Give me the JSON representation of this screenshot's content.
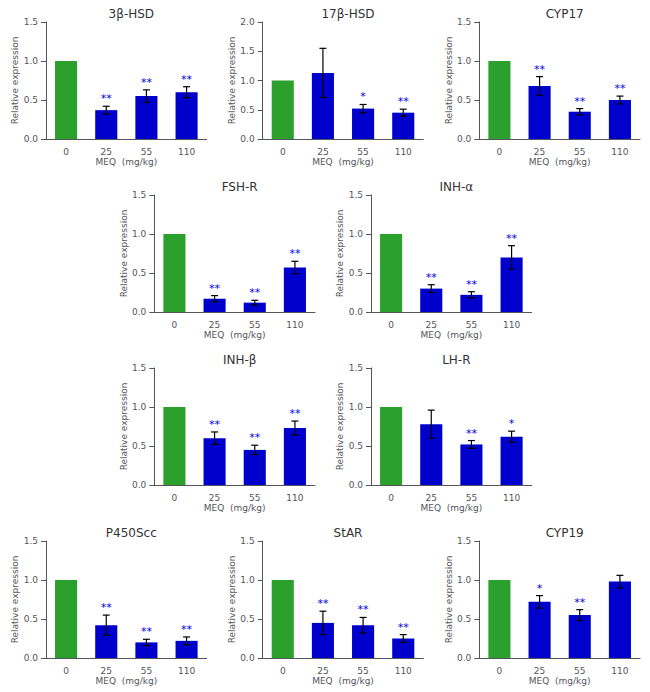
{
  "chart_data": [
    {
      "type": "bar",
      "title": "3β-HSD",
      "xlabel": "MEQ  (mg/kg)",
      "ylabel": "Relative expression",
      "categories": [
        "0",
        "25",
        "55",
        "110"
      ],
      "values": [
        1.0,
        0.37,
        0.55,
        0.6
      ],
      "errors": [
        0.0,
        0.05,
        0.08,
        0.07
      ],
      "colors": [
        "#2ca02c",
        "#0000cc",
        "#0000cc",
        "#0000cc"
      ],
      "ylim": [
        0,
        1.5
      ],
      "yticks": [
        {
          "value": 0,
          "label": "0.0"
        },
        0.5,
        {
          "value": 1,
          "label": "1.0"
        },
        1.5
      ],
      "grid": false,
      "annotations": [
        {
          "x": "25",
          "text": "**",
          "color": "#0000ee"
        },
        {
          "x": "55",
          "text": "**",
          "color": "#0000ee"
        },
        {
          "x": "110",
          "text": "**",
          "color": "#0000ee"
        }
      ]
    },
    {
      "type": "bar",
      "title": "17β-HSD",
      "xlabel": "MEQ  (mg/kg)",
      "ylabel": "Relative expression",
      "categories": [
        "0",
        "25",
        "55",
        "110"
      ],
      "values": [
        1.0,
        1.13,
        0.52,
        0.45
      ],
      "errors": [
        0.0,
        0.42,
        0.07,
        0.06
      ],
      "colors": [
        "#2ca02c",
        "#0000cc",
        "#0000cc",
        "#0000cc"
      ],
      "ylim": [
        0,
        2.0
      ],
      "yticks": [
        {
          "value": 0,
          "label": "0.0"
        },
        0.5,
        {
          "value": 1,
          "label": "1.0"
        },
        1.5,
        {
          "value": 2,
          "label": "2.0"
        }
      ],
      "grid": false,
      "annotations": [
        {
          "x": "55",
          "text": "*",
          "color": "#0000ee"
        },
        {
          "x": "110",
          "text": "**",
          "color": "#0000ee"
        }
      ]
    },
    {
      "type": "bar",
      "title": "CYP17",
      "xlabel": "MEQ  (mg/kg)",
      "ylabel": "Relative expression",
      "categories": [
        "0",
        "25",
        "55",
        "110"
      ],
      "values": [
        1.0,
        0.68,
        0.35,
        0.5
      ],
      "errors": [
        0.0,
        0.12,
        0.04,
        0.05
      ],
      "colors": [
        "#2ca02c",
        "#0000cc",
        "#0000cc",
        "#0000cc"
      ],
      "ylim": [
        0,
        1.5
      ],
      "yticks": [
        {
          "value": 0,
          "label": "0.0"
        },
        0.5,
        {
          "value": 1,
          "label": "1.0"
        },
        1.5
      ],
      "grid": false,
      "annotations": [
        {
          "x": "25",
          "text": "**",
          "color": "#0000ee"
        },
        {
          "x": "55",
          "text": "**",
          "color": "#0000ee"
        },
        {
          "x": "110",
          "text": "**",
          "color": "#0000ee"
        }
      ]
    },
    {
      "type": "bar",
      "title": "FSH-R",
      "xlabel": "MEQ  (mg/kg)",
      "ylabel": "Relative expression",
      "categories": [
        "0",
        "25",
        "55",
        "110"
      ],
      "values": [
        1.0,
        0.17,
        0.12,
        0.57
      ],
      "errors": [
        0.0,
        0.04,
        0.03,
        0.08
      ],
      "colors": [
        "#2ca02c",
        "#0000cc",
        "#0000cc",
        "#0000cc"
      ],
      "ylim": [
        0,
        1.5
      ],
      "yticks": [
        {
          "value": 0,
          "label": "0.0"
        },
        0.5,
        {
          "value": 1,
          "label": "1.0"
        },
        1.5
      ],
      "grid": false,
      "annotations": [
        {
          "x": "25",
          "text": "**",
          "color": "#0000ee"
        },
        {
          "x": "55",
          "text": "**",
          "color": "#0000ee"
        },
        {
          "x": "110",
          "text": "**",
          "color": "#0000ee"
        }
      ]
    },
    {
      "type": "bar",
      "title": "INH-α",
      "xlabel": "MEQ  (mg/kg)",
      "ylabel": "Relative expression",
      "categories": [
        "0",
        "25",
        "55",
        "110"
      ],
      "values": [
        1.0,
        0.3,
        0.22,
        0.7
      ],
      "errors": [
        0.0,
        0.05,
        0.04,
        0.15
      ],
      "colors": [
        "#2ca02c",
        "#0000cc",
        "#0000cc",
        "#0000cc"
      ],
      "ylim": [
        0,
        1.5
      ],
      "yticks": [
        {
          "value": 0,
          "label": "0.0"
        },
        0.5,
        {
          "value": 1,
          "label": "1.0"
        },
        1.5
      ],
      "grid": false,
      "annotations": [
        {
          "x": "25",
          "text": "**",
          "color": "#0000ee"
        },
        {
          "x": "55",
          "text": "**",
          "color": "#0000ee"
        },
        {
          "x": "110",
          "text": "**",
          "color": "#0000ee"
        }
      ]
    },
    {
      "type": "bar",
      "title": "INH-β",
      "xlabel": "MEQ  (mg/kg)",
      "ylabel": "Relative expression",
      "categories": [
        "0",
        "25",
        "55",
        "110"
      ],
      "values": [
        1.0,
        0.6,
        0.45,
        0.73
      ],
      "errors": [
        0.0,
        0.08,
        0.06,
        0.09
      ],
      "colors": [
        "#2ca02c",
        "#0000cc",
        "#0000cc",
        "#0000cc"
      ],
      "ylim": [
        0,
        1.5
      ],
      "yticks": [
        {
          "value": 0,
          "label": "0.0"
        },
        0.5,
        {
          "value": 1,
          "label": "1.0"
        },
        1.5
      ],
      "grid": false,
      "annotations": [
        {
          "x": "25",
          "text": "**",
          "color": "#0000ee"
        },
        {
          "x": "55",
          "text": "**",
          "color": "#0000ee"
        },
        {
          "x": "110",
          "text": "**",
          "color": "#0000ee"
        }
      ]
    },
    {
      "type": "bar",
      "title": "LH-R",
      "xlabel": "MEQ  (mg/kg)",
      "ylabel": "Relative expression",
      "categories": [
        "0",
        "25",
        "55",
        "110"
      ],
      "values": [
        1.0,
        0.78,
        0.52,
        0.62
      ],
      "errors": [
        0.0,
        0.18,
        0.05,
        0.07
      ],
      "colors": [
        "#2ca02c",
        "#0000cc",
        "#0000cc",
        "#0000cc"
      ],
      "ylim": [
        0,
        1.5
      ],
      "yticks": [
        {
          "value": 0,
          "label": "0.0"
        },
        0.5,
        {
          "value": 1,
          "label": "1.0"
        },
        1.5
      ],
      "grid": false,
      "annotations": [
        {
          "x": "55",
          "text": "**",
          "color": "#0000ee"
        },
        {
          "x": "110",
          "text": "*",
          "color": "#0000ee"
        }
      ]
    },
    {
      "type": "bar",
      "title": "P450Scc",
      "xlabel": "MEQ  (mg/kg)",
      "ylabel": "Relative expression",
      "categories": [
        "0",
        "25",
        "55",
        "110"
      ],
      "values": [
        1.0,
        0.42,
        0.2,
        0.22
      ],
      "errors": [
        0.0,
        0.13,
        0.04,
        0.05
      ],
      "colors": [
        "#2ca02c",
        "#0000cc",
        "#0000cc",
        "#0000cc"
      ],
      "ylim": [
        0,
        1.5
      ],
      "yticks": [
        {
          "value": 0,
          "label": "0.0"
        },
        0.5,
        {
          "value": 1,
          "label": "1.0"
        },
        1.5
      ],
      "grid": false,
      "annotations": [
        {
          "x": "25",
          "text": "**",
          "color": "#0000ee"
        },
        {
          "x": "55",
          "text": "**",
          "color": "#0000ee"
        },
        {
          "x": "110",
          "text": "**",
          "color": "#0000ee"
        }
      ]
    },
    {
      "type": "bar",
      "title": "StAR",
      "xlabel": "MEQ  (mg/kg)",
      "ylabel": "Relative expression",
      "categories": [
        "0",
        "25",
        "55",
        "110"
      ],
      "values": [
        1.0,
        0.45,
        0.42,
        0.25
      ],
      "errors": [
        0.0,
        0.15,
        0.1,
        0.05
      ],
      "colors": [
        "#2ca02c",
        "#0000cc",
        "#0000cc",
        "#0000cc"
      ],
      "ylim": [
        0,
        1.5
      ],
      "yticks": [
        {
          "value": 0,
          "label": "0.0"
        },
        0.5,
        {
          "value": 1,
          "label": "1.0"
        },
        1.5
      ],
      "grid": false,
      "annotations": [
        {
          "x": "25",
          "text": "**",
          "color": "#0000ee"
        },
        {
          "x": "55",
          "text": "**",
          "color": "#0000ee"
        },
        {
          "x": "110",
          "text": "**",
          "color": "#0000ee"
        }
      ]
    },
    {
      "type": "bar",
      "title": "CYP19",
      "xlabel": "MEQ  (mg/kg)",
      "ylabel": "Relative expression",
      "categories": [
        "0",
        "25",
        "55",
        "110"
      ],
      "values": [
        1.0,
        0.72,
        0.55,
        0.98
      ],
      "errors": [
        0.0,
        0.08,
        0.07,
        0.08
      ],
      "colors": [
        "#2ca02c",
        "#0000cc",
        "#0000cc",
        "#0000cc"
      ],
      "ylim": [
        0,
        1.5
      ],
      "yticks": [
        {
          "value": 0,
          "label": "0.0"
        },
        0.5,
        {
          "value": 1,
          "label": "1.0"
        },
        1.5
      ],
      "grid": false,
      "annotations": [
        {
          "x": "25",
          "text": "*",
          "color": "#0000ee"
        },
        {
          "x": "55",
          "text": "**",
          "color": "#0000ee"
        }
      ]
    }
  ]
}
